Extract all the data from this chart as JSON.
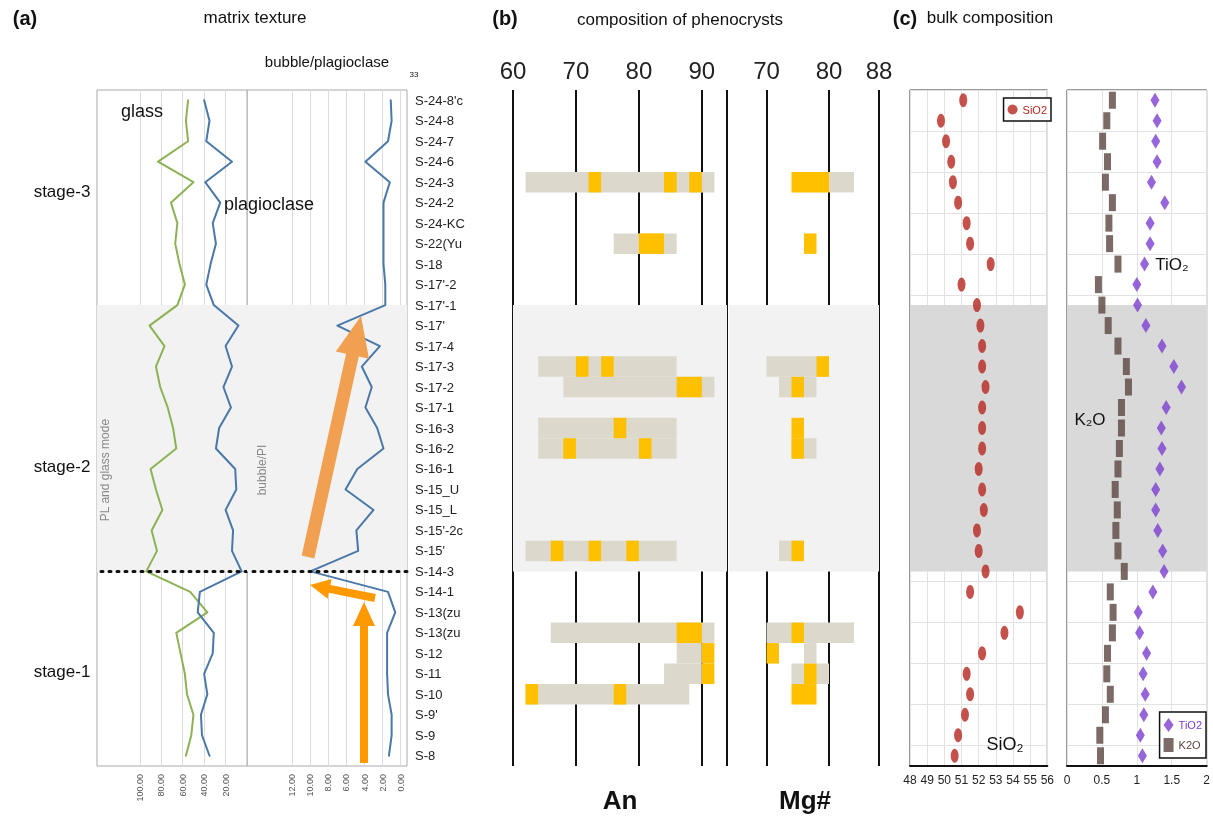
{
  "chart_data": [
    {
      "type": "line",
      "orientation": "horizontal",
      "title": "matrix texture",
      "ylabel": "PL and glass mode",
      "annotations": [
        "(a)",
        "stage-3",
        "stage-2",
        "stage-1"
      ],
      "categories": [
        "S-24-8'c",
        "S-24-8",
        "S-24-7",
        "S-24-6",
        "S-24-3",
        "S-24-2",
        "S-24-KC",
        "S-22(Yu",
        "S-18",
        "S-17'-2",
        "S-17'-1",
        "S-17'",
        "S-17-4",
        "S-17-3",
        "S-17-2",
        "S-17-1",
        "S-16-3",
        "S-16-2",
        "S-16-1",
        "S-15_U",
        "S-15_L",
        "S-15'-2c",
        "S-15'",
        "S-14-3",
        "S-14-1",
        "S-13(zu",
        "S-13(zu",
        "S-12",
        "S-11",
        "S-10",
        "S-9'",
        "S-9",
        "S-8"
      ],
      "series": [
        {
          "name": "glass",
          "color": "#8db255",
          "values": [
            55,
            57,
            55,
            83,
            50,
            71,
            65,
            67,
            63,
            58,
            65,
            91,
            77,
            85,
            81,
            74,
            69,
            66,
            90,
            85,
            79,
            89,
            84,
            94,
            53,
            37,
            66,
            62,
            58,
            56,
            50,
            52,
            57
          ]
        },
        {
          "name": "plagioclase",
          "color": "#4a78a8",
          "values": [
            40,
            35,
            38,
            14,
            39,
            25,
            32,
            29,
            34,
            38,
            31,
            8,
            20,
            14,
            22,
            15,
            26,
            29,
            11,
            10,
            20,
            13,
            14,
            5,
            44,
            46,
            31,
            32,
            40,
            37,
            43,
            42,
            35
          ]
        }
      ],
      "xlim": [
        140,
        0
      ],
      "xticks": [
        {
          "value": 100,
          "label": "100.00"
        },
        {
          "value": 80,
          "label": "80.00"
        },
        {
          "value": 60,
          "label": "60.00"
        },
        {
          "value": 40,
          "label": "40.00"
        },
        {
          "value": 20,
          "label": "20.00"
        }
      ],
      "grid": "x",
      "marker": "none",
      "tick_labels": "x",
      "bands": [
        {
          "axis": "y",
          "from": "S-17'-1",
          "to": "S-14-3",
          "color": "#f2f2f2"
        }
      ],
      "ref_lines": [
        {
          "axis": "y",
          "value": "S-14-3",
          "line_style": "dotted"
        }
      ]
    },
    {
      "type": "line",
      "orientation": "horizontal",
      "title": "bubble/plagioclase",
      "ylabel": "bubble/PI",
      "annotations": [
        "33"
      ],
      "categories": [
        "S-24-8'c",
        "S-24-8",
        "S-24-7",
        "S-24-6",
        "S-24-3",
        "S-24-2",
        "S-24-KC",
        "S-22(Yu",
        "S-18",
        "S-17'-2",
        "S-17'-1",
        "S-17'",
        "S-17-4",
        "S-17-3",
        "S-17-2",
        "S-17-1",
        "S-16-3",
        "S-16-2",
        "S-16-1",
        "S-15_U",
        "S-15_L",
        "S-15'-2c",
        "S-15'",
        "S-14-3",
        "S-14-1",
        "S-13(zu",
        "S-13(zu",
        "S-12",
        "S-11",
        "S-10",
        "S-9'",
        "S-9",
        "S-8"
      ],
      "series": [
        {
          "color": "#4a78a8",
          "values": [
            1.1,
            1.0,
            1.4,
            3.9,
            1.2,
            1.9,
            1.9,
            1.9,
            1.9,
            1.7,
            1.7,
            7.0,
            2.3,
            4.3,
            3.2,
            3.9,
            2.6,
            1.9,
            4.8,
            6.1,
            3.0,
            4.9,
            4.7,
            10.0,
            1.4,
            0.6,
            1.5,
            1.5,
            1.5,
            1.4,
            1.0,
            1.0,
            1.3
          ]
        }
      ],
      "xlim": [
        17,
        -0.7
      ],
      "xticks": [
        {
          "value": 12,
          "label": "12.00"
        },
        {
          "value": 10,
          "label": "10.00"
        },
        {
          "value": 8,
          "label": "8.00"
        },
        {
          "value": 6,
          "label": "6.00"
        },
        {
          "value": 4,
          "label": "4.00"
        },
        {
          "value": 2,
          "label": "2.00"
        },
        {
          "value": 0,
          "label": "0.00"
        }
      ],
      "grid": "x",
      "marker": "none",
      "tick_labels": "x",
      "bands": [
        {
          "axis": "y",
          "from": "S-17'-1",
          "to": "S-14-3",
          "color": "#f2f2f2"
        }
      ],
      "ref_lines": [
        {
          "axis": "y",
          "value": "S-14-3",
          "line_style": "dotted"
        }
      ]
    },
    {
      "type": "bar",
      "orientation": "horizontal",
      "title": "composition of phenocrysts",
      "xlabel": "An",
      "annotations": [
        "(b)"
      ],
      "categories": [
        "S-24-8'c",
        "S-24-8",
        "S-24-7",
        "S-24-6",
        "S-24-3",
        "S-24-2",
        "S-24-KC",
        "S-22(Yu",
        "S-18",
        "S-17'-2",
        "S-17'-1",
        "S-17'",
        "S-17-4",
        "S-17-3",
        "S-17-2",
        "S-17-1",
        "S-16-3",
        "S-16-2",
        "S-16-1",
        "S-15_U",
        "S-15_L",
        "S-15'-2c",
        "S-15'",
        "S-14-3",
        "S-14-1",
        "S-13(zu",
        "S-13(zu",
        "S-12",
        "S-11",
        "S-10",
        "S-9'",
        "S-9",
        "S-8"
      ],
      "series": [
        {
          "color": "#dcd8cc",
          "base": [
            null,
            null,
            null,
            null,
            62,
            null,
            null,
            76,
            null,
            null,
            null,
            null,
            null,
            64,
            68,
            null,
            64,
            64,
            null,
            null,
            null,
            null,
            62,
            null,
            null,
            null,
            66,
            86,
            84,
            62,
            null,
            null,
            null
          ],
          "values": [
            null,
            null,
            null,
            null,
            30,
            null,
            null,
            10,
            null,
            null,
            null,
            null,
            null,
            22,
            24,
            null,
            22,
            22,
            null,
            null,
            null,
            null,
            24,
            null,
            null,
            null,
            26,
            4,
            6,
            26,
            null,
            null,
            null
          ]
        },
        {
          "color": "#ffc000",
          "base": [
            null,
            null,
            null,
            null,
            72,
            null,
            null,
            80,
            null,
            null,
            null,
            null,
            null,
            70,
            86,
            null,
            76,
            68,
            null,
            null,
            null,
            null,
            66,
            null,
            null,
            null,
            86,
            90,
            90,
            62,
            null,
            null,
            null
          ],
          "values": [
            null,
            null,
            null,
            null,
            2,
            null,
            null,
            4,
            null,
            null,
            null,
            null,
            null,
            2,
            4,
            null,
            2,
            2,
            null,
            null,
            null,
            null,
            2,
            null,
            null,
            null,
            4,
            2,
            2,
            2,
            null,
            null,
            null
          ]
        },
        {
          "color": "#ffc000",
          "base": [
            null,
            null,
            null,
            null,
            84,
            null,
            null,
            null,
            null,
            null,
            null,
            null,
            null,
            74,
            null,
            null,
            null,
            80,
            null,
            null,
            null,
            null,
            72,
            null,
            null,
            null,
            null,
            null,
            null,
            76,
            null,
            null,
            null
          ],
          "values": [
            null,
            null,
            null,
            null,
            2,
            null,
            null,
            null,
            null,
            null,
            null,
            null,
            null,
            2,
            null,
            null,
            null,
            2,
            null,
            null,
            null,
            null,
            2,
            null,
            null,
            null,
            null,
            null,
            null,
            2,
            null,
            null,
            null
          ]
        },
        {
          "color": "#ffc000",
          "base": [
            null,
            null,
            null,
            null,
            88,
            null,
            null,
            null,
            null,
            null,
            null,
            null,
            null,
            null,
            null,
            null,
            null,
            null,
            null,
            null,
            null,
            null,
            78,
            null,
            null,
            null,
            null,
            null,
            null,
            null,
            null,
            null,
            null
          ],
          "values": [
            null,
            null,
            null,
            null,
            2,
            null,
            null,
            null,
            null,
            null,
            null,
            null,
            null,
            null,
            null,
            null,
            null,
            null,
            null,
            null,
            null,
            null,
            2,
            null,
            null,
            null,
            null,
            null,
            null,
            null,
            null,
            null,
            null
          ]
        }
      ],
      "xlim": [
        60,
        94
      ],
      "xticks": [
        60,
        70,
        80,
        90,
        {
          "value": 94,
          "label": null
        }
      ],
      "grid": "x",
      "bands": [
        {
          "axis": "y",
          "from": "S-17'-1",
          "to": "S-14-3",
          "color": "#f2f2f2"
        }
      ]
    },
    {
      "type": "bar",
      "orientation": "horizontal",
      "xlabel": "Mg#",
      "categories": [
        "S-24-8'c",
        "S-24-8",
        "S-24-7",
        "S-24-6",
        "S-24-3",
        "S-24-2",
        "S-24-KC",
        "S-22(Yu",
        "S-18",
        "S-17'-2",
        "S-17'-1",
        "S-17'",
        "S-17-4",
        "S-17-3",
        "S-17-2",
        "S-17-1",
        "S-16-3",
        "S-16-2",
        "S-16-1",
        "S-15_U",
        "S-15_L",
        "S-15'-2c",
        "S-15'",
        "S-14-3",
        "S-14-1",
        "S-13(zu",
        "S-13(zu",
        "S-12",
        "S-11",
        "S-10",
        "S-9'",
        "S-9",
        "S-8"
      ],
      "series": [
        {
          "color": "#dcd8cc",
          "base": [
            null,
            null,
            null,
            null,
            80,
            null,
            null,
            null,
            null,
            null,
            null,
            null,
            null,
            70,
            72,
            null,
            null,
            74,
            null,
            null,
            null,
            null,
            72,
            null,
            null,
            null,
            70,
            76,
            74,
            null,
            null,
            null,
            null
          ],
          "values": [
            null,
            null,
            null,
            null,
            4,
            null,
            null,
            null,
            null,
            null,
            null,
            null,
            null,
            10,
            6,
            null,
            null,
            4,
            null,
            null,
            null,
            null,
            4,
            null,
            null,
            null,
            14,
            2,
            6,
            null,
            null,
            null,
            null
          ]
        },
        {
          "color": "#ffc000",
          "base": [
            null,
            null,
            null,
            null,
            74,
            null,
            null,
            76,
            null,
            null,
            null,
            null,
            null,
            78,
            74,
            null,
            74,
            74,
            null,
            null,
            null,
            null,
            74,
            null,
            null,
            null,
            74,
            70,
            76,
            74,
            null,
            null,
            null
          ],
          "values": [
            null,
            null,
            null,
            null,
            6,
            null,
            null,
            2,
            null,
            null,
            null,
            null,
            null,
            2,
            2,
            null,
            2,
            2,
            null,
            null,
            null,
            null,
            2,
            null,
            null,
            null,
            2,
            2,
            2,
            4,
            null,
            null,
            null
          ]
        }
      ],
      "xlim": [
        64,
        88
      ],
      "xticks": [
        70,
        80,
        88
      ],
      "grid": "x",
      "tick_labels": "x",
      "bands": [
        {
          "axis": "y",
          "from": "S-17'-1",
          "to": "S-14-3",
          "color": "#f2f2f2"
        }
      ]
    },
    {
      "type": "scatter",
      "orientation": "horizontal",
      "title": "bulk composition",
      "annotations": [
        "(c)",
        "SiO₂"
      ],
      "categories": [
        "S-24-8'c",
        "S-24-8",
        "S-24-7",
        "S-24-6",
        "S-24-3",
        "S-24-2",
        "S-24-KC",
        "S-22(Yu",
        "S-18",
        "S-17'-2",
        "S-17'-1",
        "S-17'",
        "S-17-4",
        "S-17-3",
        "S-17-2",
        "S-17-1",
        "S-16-3",
        "S-16-2",
        "S-16-1",
        "S-15_U",
        "S-15_L",
        "S-15'-2c",
        "S-15'",
        "S-14-3",
        "S-14-1",
        "S-13(zu",
        "S-13(zu",
        "S-12",
        "S-11",
        "S-10",
        "S-9'",
        "S-9",
        "S-8"
      ],
      "series": [
        {
          "name": "SiO2",
          "color": "#b5261e",
          "marker": "circle",
          "values": [
            51.1,
            49.8,
            50.1,
            50.4,
            50.5,
            50.8,
            51.3,
            51.5,
            52.7,
            51.0,
            51.9,
            52.1,
            52.2,
            52.2,
            52.4,
            52.2,
            52.2,
            52.2,
            52.0,
            52.2,
            52.3,
            51.9,
            52.0,
            52.4,
            51.5,
            54.4,
            53.5,
            52.2,
            51.3,
            51.5,
            51.2,
            50.8,
            50.6
          ]
        }
      ],
      "xlim": [
        48,
        56
      ],
      "xticks": [
        48,
        49,
        50,
        51,
        52,
        53,
        54,
        55,
        56
      ],
      "grid": true,
      "legend": "top right",
      "tick_labels": "x",
      "bands": [
        {
          "axis": "y",
          "from": "S-17'-1",
          "to": "S-14-3",
          "color": "#d9d9d9"
        }
      ]
    },
    {
      "type": "scatter",
      "orientation": "horizontal",
      "annotations": [
        "TiO₂",
        "K₂O"
      ],
      "categories": [
        "S-24-8'c",
        "S-24-8",
        "S-24-7",
        "S-24-6",
        "S-24-3",
        "S-24-2",
        "S-24-KC",
        "S-22(Yu",
        "S-18",
        "S-17'-2",
        "S-17'-1",
        "S-17'",
        "S-17-4",
        "S-17-3",
        "S-17-2",
        "S-17-1",
        "S-16-3",
        "S-16-2",
        "S-16-1",
        "S-15_U",
        "S-15_L",
        "S-15'-2c",
        "S-15'",
        "S-14-3",
        "S-14-1",
        "S-13(zu",
        "S-13(zu",
        "S-12",
        "S-11",
        "S-10",
        "S-9'",
        "S-9",
        "S-8"
      ],
      "series": [
        {
          "name": "TiO2",
          "color": "#7b3fd0",
          "marker": "diamond",
          "values": [
            1.26,
            1.29,
            1.27,
            1.29,
            1.21,
            1.4,
            1.19,
            1.19,
            1.11,
            1.0,
            1.01,
            1.13,
            1.36,
            1.53,
            1.64,
            1.42,
            1.35,
            1.36,
            1.33,
            1.27,
            1.27,
            1.3,
            1.37,
            1.39,
            1.23,
            1.02,
            1.04,
            1.14,
            1.09,
            1.12,
            1.1,
            1.05,
            1.08
          ]
        },
        {
          "name": "K2O",
          "color": "#5a4540",
          "marker": "square",
          "values": [
            0.65,
            0.57,
            0.51,
            0.58,
            0.55,
            0.65,
            0.6,
            0.61,
            0.73,
            0.45,
            0.5,
            0.59,
            0.73,
            0.85,
            0.88,
            0.78,
            0.78,
            0.75,
            0.73,
            0.69,
            0.72,
            0.7,
            0.73,
            0.82,
            0.62,
            0.66,
            0.65,
            0.58,
            0.57,
            0.62,
            0.55,
            0.47,
            0.48
          ]
        }
      ],
      "xlim": [
        0,
        2
      ],
      "xticks": [
        0,
        0.5,
        1,
        1.5,
        2
      ],
      "grid": true,
      "legend": "bottom right",
      "tick_labels": "x",
      "bands": [
        {
          "axis": "y",
          "from": "S-17'-1",
          "to": "S-14-3",
          "color": "#d9d9d9"
        }
      ]
    }
  ]
}
